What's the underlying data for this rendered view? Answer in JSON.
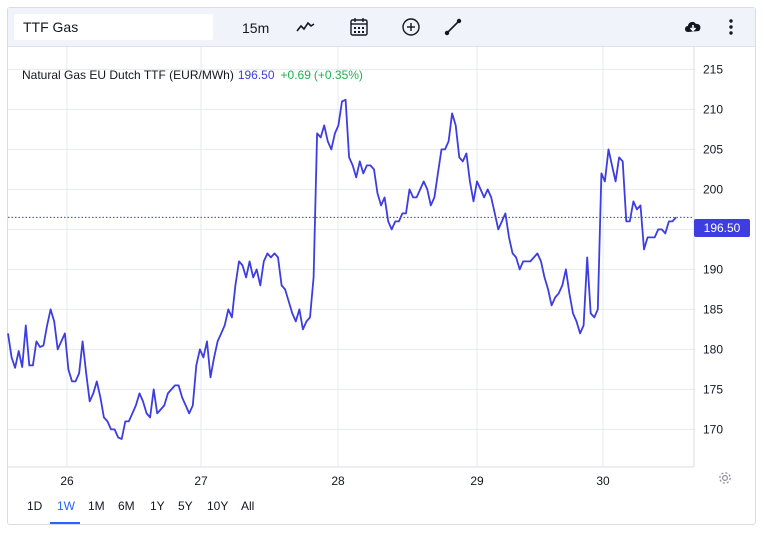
{
  "toolbar": {
    "symbol": "TTF Gas",
    "interval": "15m",
    "icons": [
      "chart-type-icon",
      "calendar-icon",
      "compare-add-icon",
      "drawing-line-icon",
      "download-cloud-icon",
      "more-vertical-icon"
    ]
  },
  "legend": {
    "name": "Natural Gas EU Dutch TTF (EUR/MWh)",
    "price": "196.50",
    "change": "+0.69",
    "change_pct": "(+0.35%)"
  },
  "price_tag": "196.50",
  "ranges": {
    "items": [
      "1D",
      "1W",
      "1M",
      "6M",
      "1Y",
      "5Y",
      "10Y",
      "All"
    ],
    "active": "1W"
  },
  "colors": {
    "line": "#3d3de0",
    "up": "#19b34c",
    "active": "#2962ff",
    "grid": "#e6e9ef"
  },
  "chart_data": {
    "type": "line",
    "title": "Natural Gas EU Dutch TTF (EUR/MWh)",
    "xlabel": "",
    "ylabel": "",
    "x_ticks": [
      "26",
      "27",
      "28",
      "29",
      "30"
    ],
    "y_ticks": [
      170,
      175,
      180,
      185,
      190,
      195,
      200,
      205,
      210,
      215
    ],
    "ylim": [
      165.3,
      217.8
    ],
    "grid": true,
    "last_value": 196.5,
    "series": [
      {
        "values": [
          182.0,
          179.0,
          177.7,
          179.8,
          177.8,
          183.0,
          178.0,
          178.0,
          181.0,
          180.3,
          180.5,
          183.0,
          185.0,
          183.5,
          180.0,
          181.0,
          182.0,
          177.5,
          176.0,
          176.0,
          177.0,
          181.0,
          177.0,
          173.5,
          174.5,
          176.0,
          174.0,
          171.5,
          171.0,
          170.0,
          170.0,
          169.0,
          168.8,
          171.0,
          171.0,
          172.0,
          173.0,
          174.5,
          173.5,
          172.0,
          171.5,
          175.0,
          172.0,
          172.5,
          173.0,
          174.5,
          175.0,
          175.5,
          175.5,
          174.0,
          173.0,
          172.0,
          173.0,
          178.0,
          180.0,
          179.0,
          181.0,
          176.5,
          179.0,
          181.0,
          182.0,
          183.0,
          185.0,
          184.0,
          188.0,
          191.0,
          190.5,
          189.0,
          191.0,
          189.0,
          190.0,
          188.0,
          191.0,
          192.0,
          191.5,
          192.0,
          191.5,
          188.0,
          187.5,
          186.0,
          184.5,
          183.5,
          185.0,
          182.5,
          183.5,
          184.0,
          189.0,
          207.0,
          206.5,
          208.0,
          206.0,
          205.0,
          207.0,
          208.0,
          211.0,
          211.2,
          204.0,
          203.0,
          201.5,
          203.5,
          202.0,
          203.0,
          203.0,
          202.5,
          199.5,
          198.0,
          199.0,
          196.0,
          195.0,
          196.0,
          196.0,
          197.0,
          197.0,
          200.0,
          199.0,
          199.0,
          200.0,
          201.0,
          200.0,
          198.0,
          199.0,
          202.0,
          205.0,
          205.0,
          206.0,
          209.5,
          208.0,
          204.0,
          203.5,
          204.5,
          201.0,
          198.5,
          201.0,
          200.0,
          199.0,
          200.0,
          199.0,
          197.0,
          195.0,
          196.0,
          197.0,
          194.0,
          192.0,
          191.5,
          190.0,
          191.0,
          191.0,
          191.0,
          191.5,
          192.0,
          191.0,
          189.0,
          187.5,
          185.5,
          186.5,
          187.0,
          188.0,
          190.0,
          187.0,
          184.5,
          183.5,
          182.0,
          183.0,
          191.5,
          184.5,
          184.0,
          185.0,
          202.0,
          201.0,
          205.0,
          203.0,
          201.0,
          204.0,
          203.5,
          196.0,
          196.0,
          198.5,
          197.5,
          198.0,
          192.5,
          194.0,
          194.0,
          194.0,
          195.0,
          195.0,
          194.5,
          196.0,
          196.0,
          196.5
        ]
      }
    ]
  }
}
